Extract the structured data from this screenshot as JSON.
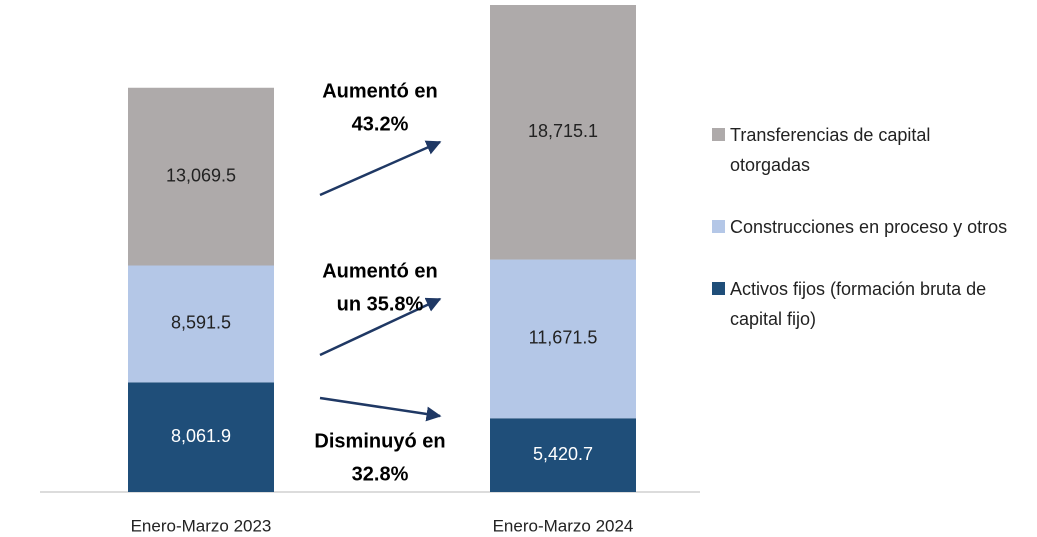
{
  "chart_data": {
    "type": "stacked-bar",
    "categories": [
      "Enero-Marzo 2023",
      "Enero-Marzo 2024"
    ],
    "series": [
      {
        "name": "Activos fijos (formación bruta de capital fijo)",
        "color": "#1f4e79",
        "values": [
          8061.9,
          5420.7
        ],
        "value_labels": [
          "8,061.9",
          "5,420.7"
        ]
      },
      {
        "name": "Construcciones en proceso y otros",
        "color": "#b4c7e7",
        "values": [
          8591.5,
          11671.5
        ],
        "value_labels": [
          "8,591.5",
          "11,671.5"
        ]
      },
      {
        "name": "Transferencias de capital otorgadas",
        "color": "#aeaaaa",
        "values": [
          13069.5,
          18715.1
        ],
        "value_labels": [
          "13,069.5",
          "18,715.1"
        ]
      }
    ],
    "annotations": [
      {
        "lines": [
          "Aumentó en",
          "43.2%"
        ]
      },
      {
        "lines": [
          "Aumentó en",
          "un 35.8%"
        ]
      },
      {
        "lines": [
          "Disminuyó en",
          "32.8%"
        ]
      }
    ],
    "legend": "right"
  }
}
